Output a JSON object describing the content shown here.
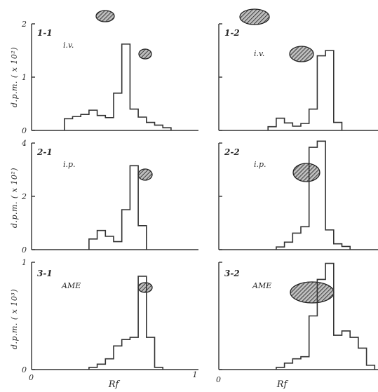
{
  "chart_data": {
    "type": "step-histogram",
    "xlabel": "Rf",
    "x_tick_labels": [
      "0",
      "1"
    ],
    "rf_bin_edges": [
      0.2,
      0.25,
      0.3,
      0.35,
      0.4,
      0.45,
      0.5,
      0.55,
      0.6,
      0.65,
      0.7,
      0.75,
      0.8,
      0.85,
      0.9,
      0.95
    ],
    "rows": [
      {
        "ylabel": "d.p.m. ( x 10²)",
        "yticks": [
          "0",
          "1",
          "2"
        ],
        "ymax": 2
      },
      {
        "ylabel": "d.p.m. ( x 10²)",
        "yticks": [
          "0",
          "2",
          "4"
        ],
        "ymax": 4
      },
      {
        "ylabel": "d.p.m. ( x 10³)",
        "yticks": [
          "0",
          "1"
        ],
        "ymax": 1
      }
    ],
    "panels": [
      {
        "id": "1-1",
        "route": "i.v.",
        "values": [
          0.22,
          0.26,
          0.3,
          0.38,
          0.28,
          0.24,
          0.7,
          1.62,
          0.4,
          0.25,
          0.15,
          0.1,
          0.05
        ]
      },
      {
        "id": "1-2",
        "route": "i.v.",
        "values": [
          0.07,
          0.23,
          0.14,
          0.08,
          0.13,
          0.4,
          1.4,
          1.5,
          0.15
        ]
      },
      {
        "id": "2-1",
        "route": "i.p.",
        "values": [
          0.4,
          0.72,
          0.5,
          0.3,
          1.5,
          3.15,
          0.9
        ]
      },
      {
        "id": "2-2",
        "route": "i.p.",
        "values": [
          0.1,
          0.28,
          0.62,
          0.86,
          3.84,
          4.07,
          0.74,
          0.22,
          0.12
        ]
      },
      {
        "id": "3-1",
        "route": "AME",
        "values": [
          0.02,
          0.05,
          0.1,
          0.22,
          0.28,
          0.3,
          0.87,
          0.3,
          0.02
        ]
      },
      {
        "id": "3-2",
        "route": "AME",
        "values": [
          0.02,
          0.06,
          0.1,
          0.12,
          0.5,
          0.84,
          0.99,
          0.32,
          0.36,
          0.3,
          0.2,
          0.04
        ]
      }
    ]
  }
}
